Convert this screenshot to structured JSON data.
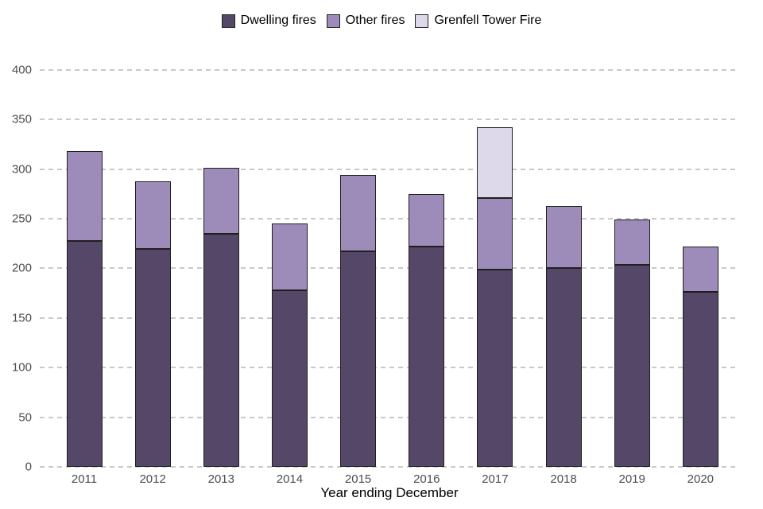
{
  "chart_data": {
    "type": "bar",
    "stacked": true,
    "title": "",
    "xlabel": "Year ending December",
    "ylabel": "",
    "categories": [
      "2011",
      "2012",
      "2013",
      "2014",
      "2015",
      "2016",
      "2017",
      "2018",
      "2019",
      "2020"
    ],
    "series": [
      {
        "name": "Dwelling fires",
        "color": "#544768",
        "values": [
          228,
          220,
          235,
          178,
          217,
          222,
          199,
          200,
          204,
          176
        ]
      },
      {
        "name": "Other fires",
        "color": "#9d8cba",
        "values": [
          90,
          68,
          66,
          67,
          77,
          53,
          72,
          63,
          45,
          46
        ]
      },
      {
        "name": "Grenfell Tower Fire",
        "color": "#ded9ea",
        "values": [
          0,
          0,
          0,
          0,
          0,
          0,
          71,
          0,
          0,
          0
        ]
      }
    ],
    "stack_totals": [
      318,
      288,
      301,
      245,
      294,
      275,
      342,
      263,
      249,
      222
    ],
    "ylim": [
      0,
      400
    ],
    "yticks": [
      0,
      50,
      100,
      150,
      200,
      250,
      300,
      350,
      400
    ],
    "grid": "horizontal-dashed",
    "legend_position": "top-center",
    "colors": {
      "bar_border": "#1f1f1f",
      "gridline": "#c9c9c9",
      "axis_text": "#4d4d4d",
      "title_text": "#000000"
    }
  }
}
